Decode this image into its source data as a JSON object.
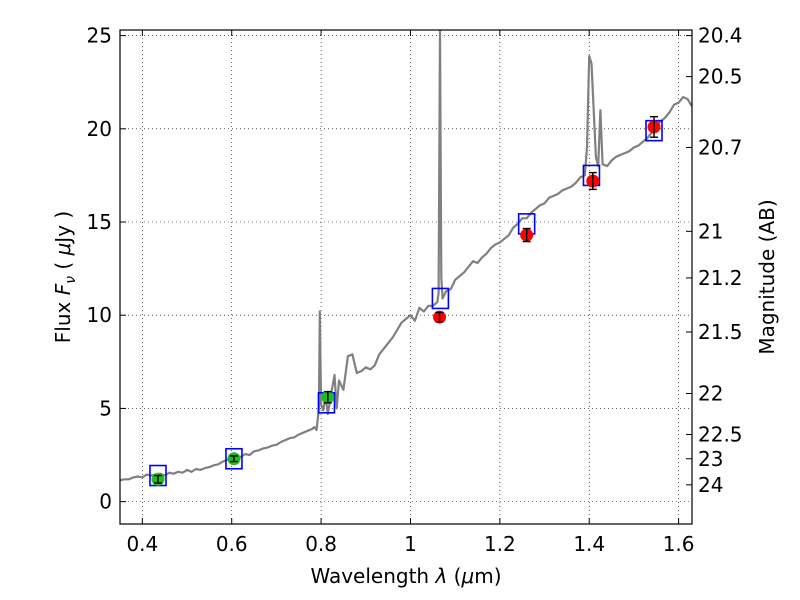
{
  "chart_data": {
    "type": "scatter",
    "title": "",
    "xlabel": "Wavelength λ (μm)",
    "ylabel": "Flux F_ν ( μJy )",
    "ylabel_right": "Magnitude (AB)",
    "xlim": [
      0.35,
      1.63
    ],
    "ylim": [
      -1.2,
      25.3
    ],
    "grid": true,
    "x_ticks": [
      "0.4",
      "0.6",
      "0.8",
      "1",
      "1.2",
      "1.4",
      "1.6"
    ],
    "y_ticks": [
      "0",
      "5",
      "10",
      "15",
      "20",
      "25"
    ],
    "right_axis_ticks": [
      {
        "label": "20.4",
        "flux": 25.0
      },
      {
        "label": "20.5",
        "flux": 22.8
      },
      {
        "label": "20.7",
        "flux": 19.0
      },
      {
        "label": "21",
        "flux": 14.5
      },
      {
        "label": "21.2",
        "flux": 12.0
      },
      {
        "label": "21.5",
        "flux": 9.1
      },
      {
        "label": "22",
        "flux": 5.8
      },
      {
        "label": "22.5",
        "flux": 3.6
      },
      {
        "label": "23",
        "flux": 2.3
      },
      {
        "label": "24",
        "flux": 0.9
      }
    ],
    "series": [
      {
        "type": "line",
        "color": "#808080",
        "points": [
          [
            0.35,
            1.15
          ],
          [
            0.36,
            1.2
          ],
          [
            0.37,
            1.2
          ],
          [
            0.38,
            1.3
          ],
          [
            0.39,
            1.35
          ],
          [
            0.4,
            1.3
          ],
          [
            0.41,
            1.45
          ],
          [
            0.42,
            1.4
          ],
          [
            0.43,
            1.45
          ],
          [
            0.44,
            1.5
          ],
          [
            0.45,
            1.4
          ],
          [
            0.46,
            1.55
          ],
          [
            0.47,
            1.5
          ],
          [
            0.48,
            1.6
          ],
          [
            0.49,
            1.55
          ],
          [
            0.5,
            1.7
          ],
          [
            0.51,
            1.6
          ],
          [
            0.52,
            1.75
          ],
          [
            0.53,
            1.7
          ],
          [
            0.54,
            1.8
          ],
          [
            0.55,
            1.85
          ],
          [
            0.56,
            1.95
          ],
          [
            0.57,
            2.0
          ],
          [
            0.58,
            2.15
          ],
          [
            0.59,
            2.25
          ],
          [
            0.6,
            2.35
          ],
          [
            0.61,
            2.45
          ],
          [
            0.62,
            2.4
          ],
          [
            0.63,
            2.55
          ],
          [
            0.64,
            2.5
          ],
          [
            0.65,
            2.7
          ],
          [
            0.66,
            2.75
          ],
          [
            0.67,
            2.85
          ],
          [
            0.68,
            2.9
          ],
          [
            0.69,
            3.0
          ],
          [
            0.7,
            3.05
          ],
          [
            0.71,
            3.2
          ],
          [
            0.72,
            3.3
          ],
          [
            0.73,
            3.4
          ],
          [
            0.74,
            3.45
          ],
          [
            0.75,
            3.6
          ],
          [
            0.76,
            3.7
          ],
          [
            0.77,
            3.8
          ],
          [
            0.78,
            3.9
          ],
          [
            0.785,
            4.0
          ],
          [
            0.79,
            3.85
          ],
          [
            0.795,
            5.0
          ],
          [
            0.797,
            10.2
          ],
          [
            0.8,
            5.2
          ],
          [
            0.805,
            4.9
          ],
          [
            0.81,
            5.7
          ],
          [
            0.815,
            4.7
          ],
          [
            0.82,
            5.4
          ],
          [
            0.83,
            6.8
          ],
          [
            0.835,
            5.0
          ],
          [
            0.84,
            6.5
          ],
          [
            0.85,
            6.0
          ],
          [
            0.86,
            7.8
          ],
          [
            0.87,
            7.9
          ],
          [
            0.875,
            7.4
          ],
          [
            0.88,
            6.9
          ],
          [
            0.89,
            7.0
          ],
          [
            0.9,
            7.2
          ],
          [
            0.91,
            7.1
          ],
          [
            0.92,
            7.3
          ],
          [
            0.93,
            7.9
          ],
          [
            0.94,
            8.2
          ],
          [
            0.95,
            8.5
          ],
          [
            0.96,
            8.8
          ],
          [
            0.97,
            9.2
          ],
          [
            0.98,
            9.6
          ],
          [
            0.99,
            9.8
          ],
          [
            1.0,
            10.0
          ],
          [
            1.01,
            9.7
          ],
          [
            1.02,
            10.4
          ],
          [
            1.03,
            10.2
          ],
          [
            1.04,
            10.5
          ],
          [
            1.05,
            10.5
          ],
          [
            1.06,
            10.7
          ],
          [
            1.063,
            11.2
          ],
          [
            1.066,
            25.3
          ],
          [
            1.069,
            12.0
          ],
          [
            1.072,
            10.9
          ],
          [
            1.08,
            11.3
          ],
          [
            1.09,
            11.4
          ],
          [
            1.1,
            11.9
          ],
          [
            1.11,
            12.1
          ],
          [
            1.12,
            12.3
          ],
          [
            1.13,
            12.6
          ],
          [
            1.14,
            12.9
          ],
          [
            1.15,
            12.8
          ],
          [
            1.16,
            13.1
          ],
          [
            1.17,
            13.3
          ],
          [
            1.18,
            13.6
          ],
          [
            1.19,
            13.8
          ],
          [
            1.2,
            13.9
          ],
          [
            1.21,
            14.1
          ],
          [
            1.22,
            14.3
          ],
          [
            1.23,
            14.7
          ],
          [
            1.24,
            14.9
          ],
          [
            1.25,
            15.2
          ],
          [
            1.26,
            15.2
          ],
          [
            1.27,
            15.5
          ],
          [
            1.28,
            15.7
          ],
          [
            1.29,
            15.9
          ],
          [
            1.3,
            16.0
          ],
          [
            1.31,
            16.3
          ],
          [
            1.32,
            16.4
          ],
          [
            1.33,
            16.5
          ],
          [
            1.34,
            16.7
          ],
          [
            1.35,
            16.8
          ],
          [
            1.36,
            16.9
          ],
          [
            1.37,
            17.1
          ],
          [
            1.38,
            17.4
          ],
          [
            1.39,
            17.5
          ],
          [
            1.395,
            19.0
          ],
          [
            1.4,
            23.9
          ],
          [
            1.405,
            23.5
          ],
          [
            1.41,
            21.0
          ],
          [
            1.415,
            18.5
          ],
          [
            1.42,
            18.0
          ],
          [
            1.425,
            21.0
          ],
          [
            1.43,
            18.1
          ],
          [
            1.44,
            18.0
          ],
          [
            1.45,
            18.3
          ],
          [
            1.46,
            18.5
          ],
          [
            1.47,
            18.6
          ],
          [
            1.48,
            18.7
          ],
          [
            1.49,
            18.8
          ],
          [
            1.5,
            19.0
          ],
          [
            1.51,
            19.1
          ],
          [
            1.52,
            19.3
          ],
          [
            1.53,
            19.5
          ],
          [
            1.54,
            19.8
          ],
          [
            1.55,
            20.2
          ],
          [
            1.56,
            20.4
          ],
          [
            1.57,
            20.6
          ],
          [
            1.58,
            20.9
          ],
          [
            1.59,
            21.3
          ],
          [
            1.6,
            21.4
          ],
          [
            1.61,
            21.7
          ],
          [
            1.62,
            21.6
          ],
          [
            1.63,
            21.2
          ]
        ]
      },
      {
        "type": "squares",
        "color": "#0000ff",
        "x": [
          0.435,
          0.605,
          0.812,
          1.067,
          1.26,
          1.405,
          1.545
        ],
        "y": [
          1.4,
          2.3,
          5.3,
          10.9,
          14.9,
          17.5,
          19.9
        ]
      },
      {
        "type": "errorpoints",
        "color": "#22bb22",
        "x": [
          0.435,
          0.605,
          0.815
        ],
        "y": [
          1.2,
          2.3,
          5.6
        ],
        "err": [
          0.2,
          0.15,
          0.3
        ]
      },
      {
        "type": "errorpoints",
        "color": "#ff0000",
        "x": [
          1.065,
          1.26,
          1.408,
          1.545
        ],
        "y": [
          9.9,
          14.3,
          17.2,
          20.1
        ],
        "err": [
          0.25,
          0.35,
          0.45,
          0.55
        ]
      }
    ]
  }
}
